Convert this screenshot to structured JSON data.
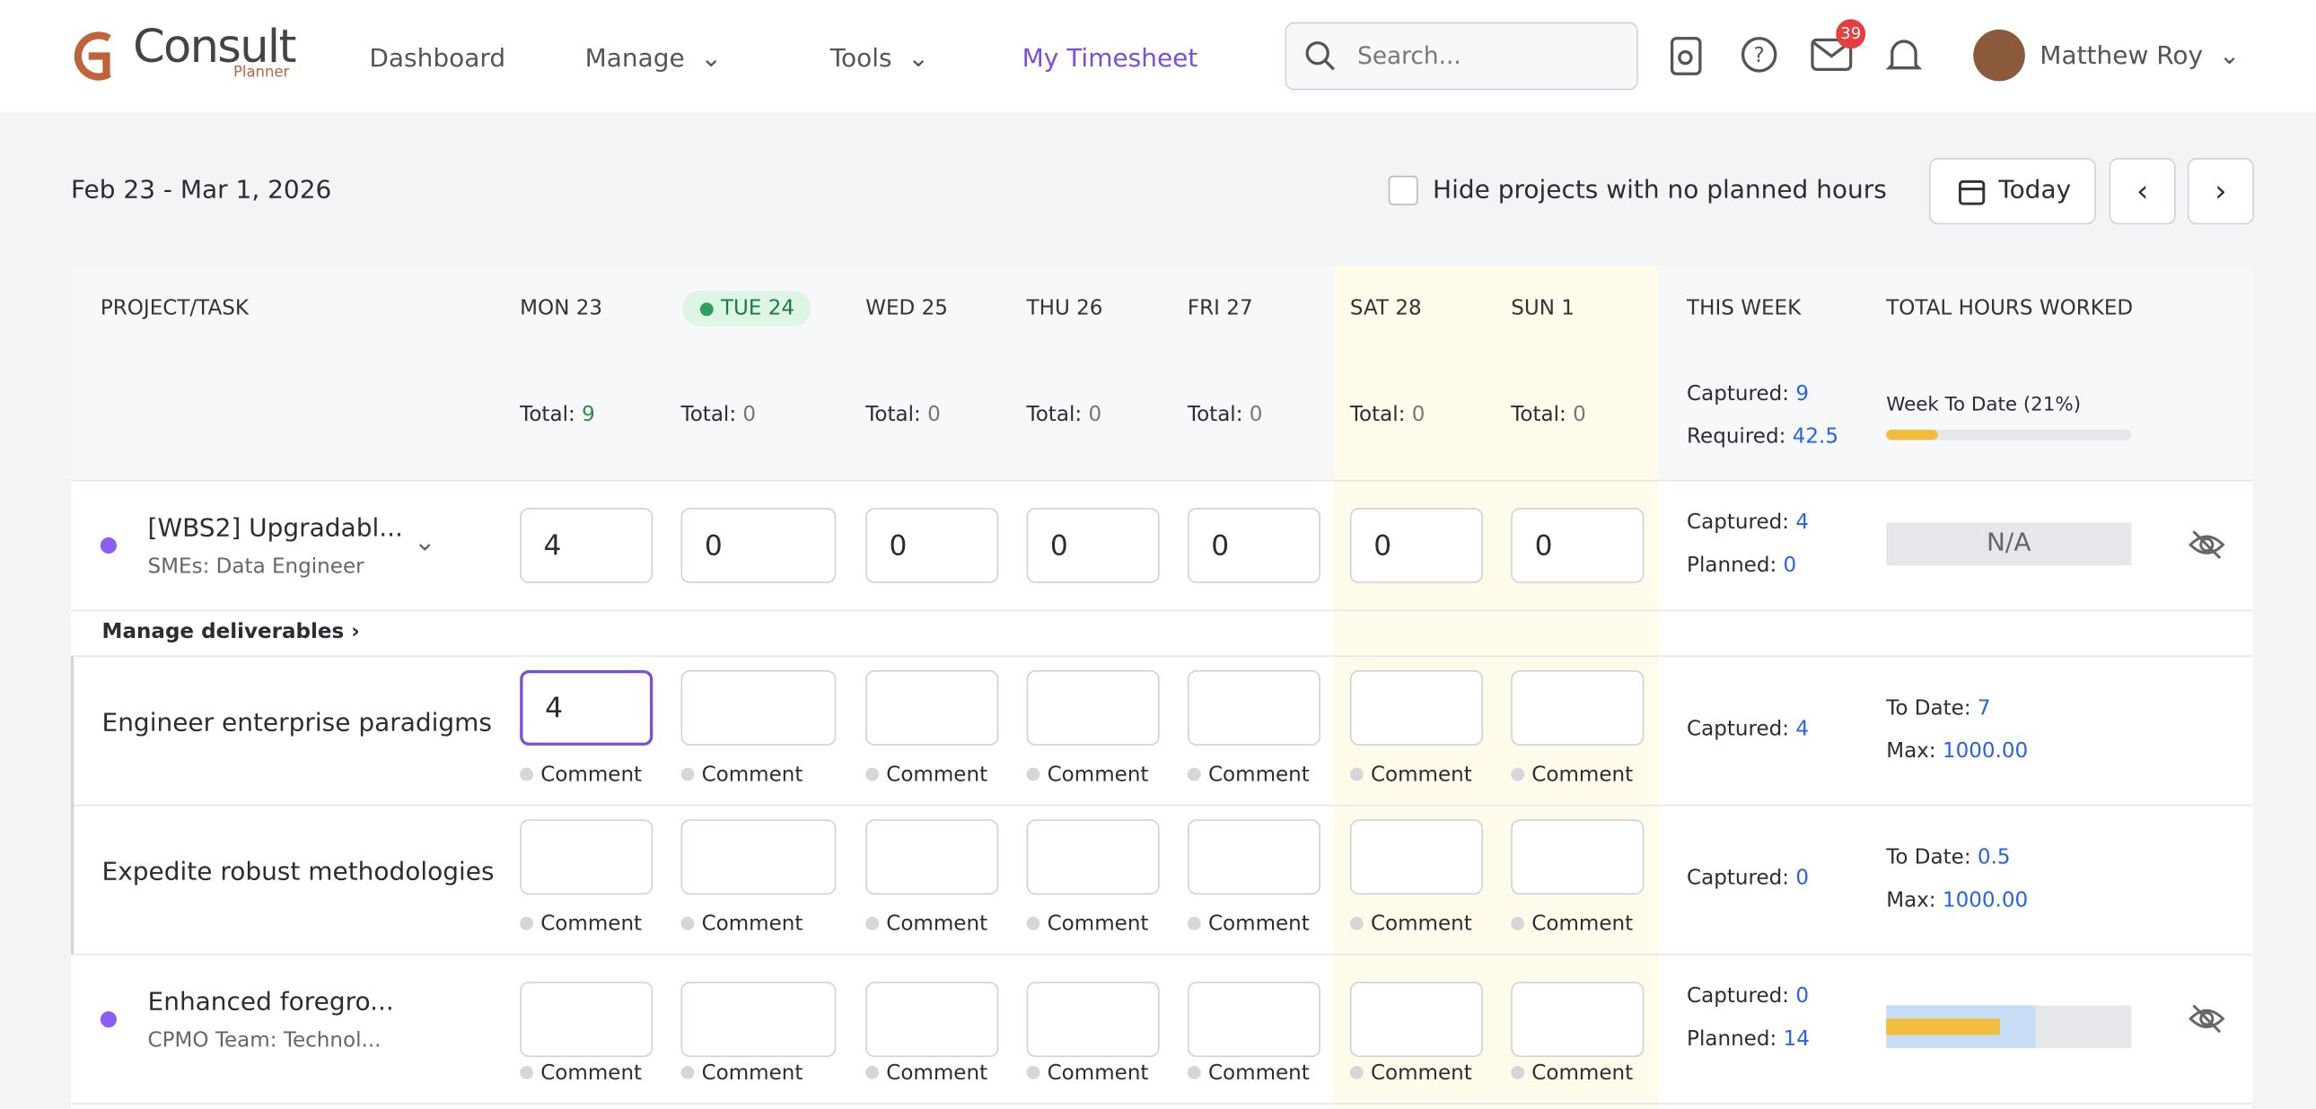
{
  "header": {
    "logo": "Consult",
    "logo_sub": "Planner",
    "nav": [
      "Dashboard",
      "Manage",
      "Tools",
      "My Timesheet"
    ],
    "search_placeholder": "Search...",
    "mail_badge": "39",
    "user": "Matthew Roy"
  },
  "toolbar": {
    "date_range": "Feb 23 - Mar 1, 2026",
    "hide_label": "Hide projects with no planned hours",
    "today": "Today"
  },
  "table": {
    "columns": [
      "PROJECT/TASK",
      "MON 23",
      "TUE 24",
      "WED 25",
      "THU 26",
      "FRI 27",
      "SAT 28",
      "SUN 1",
      "THIS WEEK",
      "TOTAL HOURS WORKED"
    ],
    "total_label": "Total:",
    "day_totals": [
      "9",
      "0",
      "0",
      "0",
      "0",
      "0",
      "0"
    ],
    "captured_label": "Captured:",
    "week_captured": "9",
    "required_label": "Required:",
    "week_required": "42.5",
    "week_to_date": "Week To Date (21%)",
    "planned_label": "Planned:",
    "to_date_label": "To Date:",
    "max_label": "Max:",
    "comment_label": "Comment",
    "manage_deliverables": "Manage deliverables",
    "rows": [
      {
        "kind": "project",
        "name": "[WBS2] Upgradabl...",
        "sub": "SMEs: Data Engineer",
        "hours": [
          "4",
          "0",
          "0",
          "0",
          "0",
          "0",
          "0"
        ],
        "captured": "4",
        "planned": "0",
        "total": "N/A"
      },
      {
        "kind": "task",
        "name": "Engineer enterprise paradigms",
        "hours": [
          "4",
          null,
          null,
          null,
          null,
          null,
          null
        ],
        "captured": "4",
        "to_date": "7",
        "max": "1000.00"
      },
      {
        "kind": "task",
        "name": "Expedite robust methodologies",
        "hours": [
          null,
          null,
          null,
          null,
          null,
          null,
          null
        ],
        "captured": "0",
        "to_date": "0.5",
        "max": "1000.00"
      },
      {
        "kind": "project",
        "name": "Enhanced foregro...",
        "sub": "CPMO Team: Technol...",
        "hours": [
          null,
          null,
          null,
          null,
          null,
          null,
          null
        ],
        "captured": "0",
        "planned": "14"
      }
    ]
  }
}
